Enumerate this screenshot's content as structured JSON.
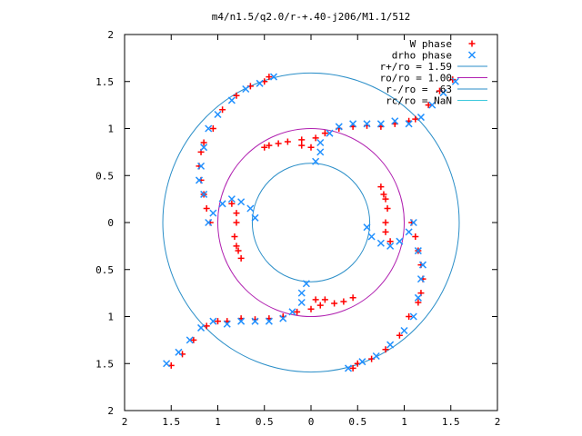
{
  "chart_data": {
    "type": "scatter",
    "title": "m4/n1.5/q2.0/r-+.40-j206/M1.1/512",
    "xlabel": "",
    "ylabel": "",
    "xlim": [
      -2,
      2
    ],
    "ylim": [
      -2,
      2
    ],
    "x_ticks": [
      -2,
      -1.5,
      -1,
      -0.5,
      0,
      0.5,
      1,
      1.5,
      2
    ],
    "y_ticks": [
      -2,
      -1.5,
      -1,
      -0.5,
      0,
      0.5,
      1,
      1.5,
      2
    ],
    "x_tick_labels": [
      "2",
      "1.5",
      "1",
      "0.5",
      "0",
      "0.5",
      "1",
      "1.5",
      "2"
    ],
    "y_tick_labels": [
      "2",
      "1.5",
      "1",
      "0.5",
      "0",
      "0.5",
      "1",
      "1.5",
      "2"
    ],
    "grid": false,
    "legend_position": "top-right",
    "series": [
      {
        "name": "W phase",
        "marker": "plus",
        "color": "#ff0000",
        "points": [
          [
            1.52,
            1.52
          ],
          [
            1.38,
            1.4
          ],
          [
            1.26,
            1.25
          ],
          [
            1.12,
            1.1
          ],
          [
            1.05,
            1.08
          ],
          [
            0.9,
            1.05
          ],
          [
            0.75,
            1.02
          ],
          [
            0.6,
            1.03
          ],
          [
            0.45,
            1.02
          ],
          [
            0.3,
            1.0
          ],
          [
            0.15,
            0.95
          ],
          [
            0.05,
            0.9
          ],
          [
            -0.1,
            0.88
          ],
          [
            -0.25,
            0.86
          ],
          [
            -0.35,
            0.84
          ],
          [
            -0.45,
            0.82
          ],
          [
            -0.5,
            0.8
          ],
          [
            -0.1,
            0.82
          ],
          [
            0.0,
            0.8
          ],
          [
            0.75,
            0.38
          ],
          [
            0.78,
            0.3
          ],
          [
            0.8,
            0.25
          ],
          [
            0.82,
            0.15
          ],
          [
            0.8,
            0.0
          ],
          [
            0.8,
            -0.1
          ],
          [
            0.85,
            -0.2
          ],
          [
            1.08,
            0.0
          ],
          [
            1.12,
            -0.15
          ],
          [
            1.15,
            -0.3
          ],
          [
            1.18,
            -0.45
          ],
          [
            1.2,
            -0.6
          ],
          [
            1.18,
            -0.75
          ],
          [
            1.15,
            -0.85
          ],
          [
            1.05,
            -1.0
          ],
          [
            0.95,
            -1.2
          ],
          [
            0.8,
            -1.35
          ],
          [
            0.65,
            -1.45
          ],
          [
            0.5,
            -1.5
          ],
          [
            0.45,
            -1.55
          ],
          [
            -1.5,
            -1.52
          ],
          [
            -1.38,
            -1.4
          ],
          [
            -1.26,
            -1.25
          ],
          [
            -1.12,
            -1.1
          ],
          [
            -1.0,
            -1.05
          ],
          [
            -0.9,
            -1.05
          ],
          [
            -0.75,
            -1.02
          ],
          [
            -0.6,
            -1.03
          ],
          [
            -0.45,
            -1.02
          ],
          [
            -0.3,
            -1.0
          ],
          [
            -0.15,
            -0.95
          ],
          [
            0.0,
            -0.92
          ],
          [
            0.1,
            -0.88
          ],
          [
            0.25,
            -0.86
          ],
          [
            0.35,
            -0.84
          ],
          [
            0.45,
            -0.8
          ],
          [
            0.15,
            -0.82
          ],
          [
            0.05,
            -0.82
          ],
          [
            -0.75,
            -0.38
          ],
          [
            -0.78,
            -0.3
          ],
          [
            -0.8,
            -0.25
          ],
          [
            -0.82,
            -0.15
          ],
          [
            -0.8,
            0.0
          ],
          [
            -0.8,
            0.1
          ],
          [
            -0.85,
            0.2
          ],
          [
            -1.08,
            0.0
          ],
          [
            -1.12,
            0.15
          ],
          [
            -1.15,
            0.3
          ],
          [
            -1.18,
            0.45
          ],
          [
            -1.2,
            0.6
          ],
          [
            -1.18,
            0.75
          ],
          [
            -1.15,
            0.85
          ],
          [
            -1.05,
            1.0
          ],
          [
            -0.95,
            1.2
          ],
          [
            -0.8,
            1.35
          ],
          [
            -0.65,
            1.45
          ],
          [
            -0.5,
            1.5
          ],
          [
            -0.45,
            1.55
          ]
        ]
      },
      {
        "name": "drho phase",
        "marker": "cross",
        "color": "#2090ff",
        "points": [
          [
            1.55,
            1.5
          ],
          [
            1.42,
            1.38
          ],
          [
            1.3,
            1.25
          ],
          [
            1.18,
            1.12
          ],
          [
            1.05,
            1.05
          ],
          [
            0.9,
            1.08
          ],
          [
            0.75,
            1.05
          ],
          [
            0.6,
            1.05
          ],
          [
            0.45,
            1.05
          ],
          [
            0.3,
            1.02
          ],
          [
            0.2,
            0.95
          ],
          [
            0.1,
            0.85
          ],
          [
            0.1,
            0.75
          ],
          [
            0.05,
            0.65
          ],
          [
            1.1,
            0.0
          ],
          [
            1.05,
            -0.1
          ],
          [
            0.95,
            -0.2
          ],
          [
            0.85,
            -0.25
          ],
          [
            0.75,
            -0.22
          ],
          [
            0.65,
            -0.15
          ],
          [
            0.6,
            -0.05
          ],
          [
            1.15,
            -0.3
          ],
          [
            1.2,
            -0.45
          ],
          [
            1.18,
            -0.6
          ],
          [
            1.15,
            -0.8
          ],
          [
            1.1,
            -1.0
          ],
          [
            1.0,
            -1.15
          ],
          [
            0.85,
            -1.3
          ],
          [
            0.7,
            -1.42
          ],
          [
            0.55,
            -1.48
          ],
          [
            0.4,
            -1.55
          ],
          [
            -1.55,
            -1.5
          ],
          [
            -1.42,
            -1.38
          ],
          [
            -1.3,
            -1.25
          ],
          [
            -1.18,
            -1.12
          ],
          [
            -1.05,
            -1.05
          ],
          [
            -0.9,
            -1.08
          ],
          [
            -0.75,
            -1.05
          ],
          [
            -0.6,
            -1.05
          ],
          [
            -0.45,
            -1.05
          ],
          [
            -0.3,
            -1.02
          ],
          [
            -0.2,
            -0.95
          ],
          [
            -0.1,
            -0.85
          ],
          [
            -0.1,
            -0.75
          ],
          [
            -0.05,
            -0.65
          ],
          [
            -1.1,
            0.0
          ],
          [
            -1.05,
            0.1
          ],
          [
            -0.95,
            0.2
          ],
          [
            -0.85,
            0.25
          ],
          [
            -0.75,
            0.22
          ],
          [
            -0.65,
            0.15
          ],
          [
            -0.6,
            0.05
          ],
          [
            -1.15,
            0.3
          ],
          [
            -1.2,
            0.45
          ],
          [
            -1.18,
            0.6
          ],
          [
            -1.15,
            0.8
          ],
          [
            -1.1,
            1.0
          ],
          [
            -1.0,
            1.15
          ],
          [
            -0.85,
            1.3
          ],
          [
            -0.7,
            1.42
          ],
          [
            -0.55,
            1.48
          ],
          [
            -0.4,
            1.55
          ]
        ]
      }
    ],
    "circles": [
      {
        "name": "r+/ro = 1.59",
        "radius": 1.59,
        "color": "#2a8ec8"
      },
      {
        "name": "ro/ro = 1.00",
        "radius": 1.0,
        "color": "#b020b0"
      },
      {
        "name": "r-/ro = .63",
        "radius": 0.63,
        "color": "#2a8ec8"
      },
      {
        "name": "rc/ro = NaN",
        "radius": null,
        "color": "#3cc8dc"
      }
    ]
  }
}
